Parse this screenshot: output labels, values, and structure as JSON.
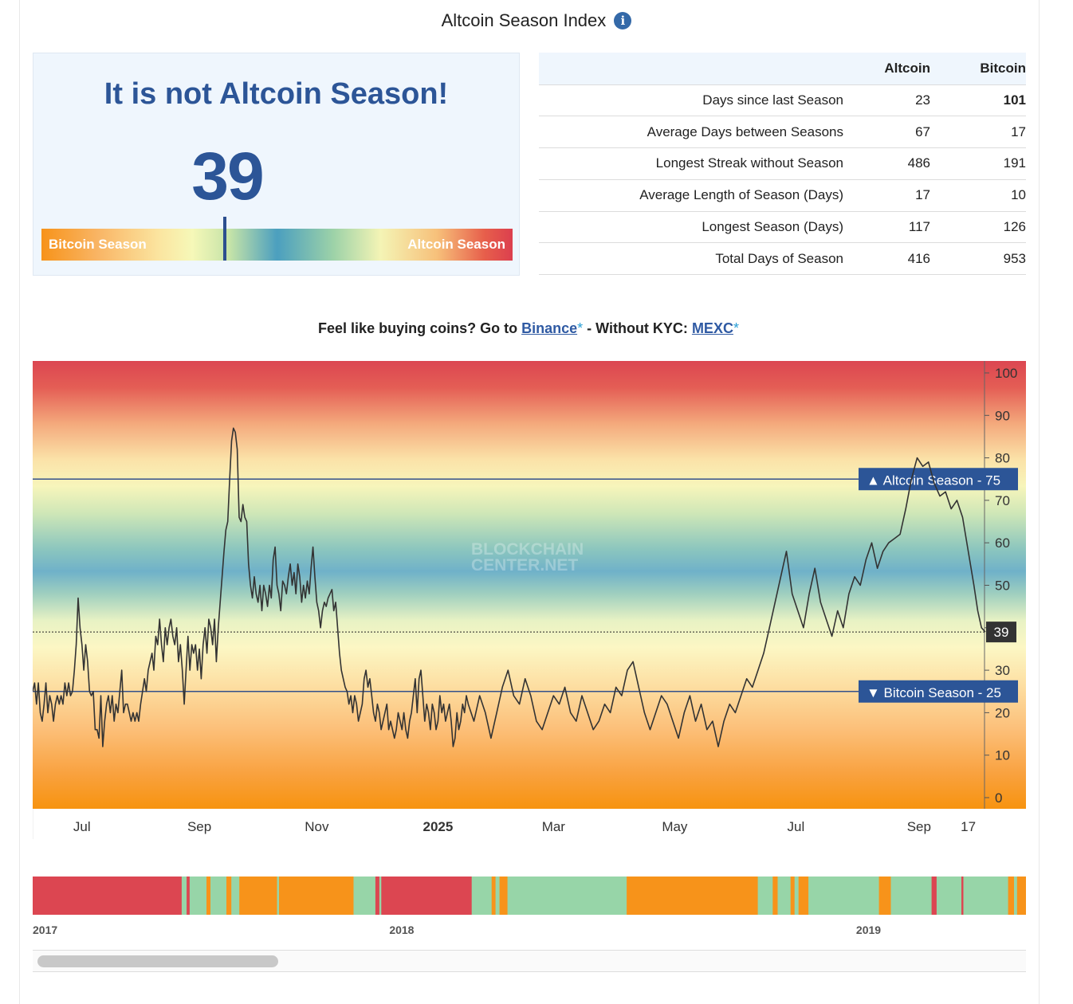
{
  "header": {
    "title": "Altcoin Season Index",
    "info_glyph": "i"
  },
  "status": {
    "headline": "It is not Altcoin Season!",
    "value": "39",
    "gauge": {
      "left_label": "Bitcoin Season",
      "right_label": "Altcoin Season",
      "marker_fraction": 0.39
    }
  },
  "stats": {
    "headers": [
      "",
      "Altcoin",
      "Bitcoin"
    ],
    "rows": [
      {
        "label": "Days since last Season",
        "altcoin": "23",
        "bitcoin": "101",
        "bitcoin_highlight": true
      },
      {
        "label": "Average Days between Seasons",
        "altcoin": "67",
        "bitcoin": "17"
      },
      {
        "label": "Longest Streak without Season",
        "altcoin": "486",
        "bitcoin": "191"
      },
      {
        "label": "Average Length of Season (Days)",
        "altcoin": "17",
        "bitcoin": "10"
      },
      {
        "label": "Longest Season (Days)",
        "altcoin": "117",
        "bitcoin": "126"
      },
      {
        "label": "Total Days of Season",
        "altcoin": "416",
        "bitcoin": "953"
      }
    ]
  },
  "promo": {
    "prefix": "Feel like buying coins? Go to ",
    "link1": "Binance",
    "mid": " - Without KYC: ",
    "link2": "MEXC",
    "star": "*"
  },
  "colors": {
    "accent": "#2c5597",
    "bitcoin_zone": "#f7931a",
    "altcoin_zone": "#dc3f4e",
    "neutral": "#4b9fbf",
    "navigator_mid": "#97d5a8"
  },
  "chart_data": {
    "type": "line",
    "watermark": [
      "BLOCKCHAIN",
      "CENTER.NET"
    ],
    "ylim": [
      0,
      100
    ],
    "y_ticks": [
      0,
      10,
      20,
      30,
      40,
      50,
      60,
      70,
      80,
      90,
      100
    ],
    "x_tick_labels": [
      "Jul",
      "Sep",
      "Nov",
      "2025",
      "Mar",
      "May",
      "Jul",
      "Sep",
      "17"
    ],
    "x_tick_days": [
      7,
      69,
      131,
      195,
      256,
      320,
      384,
      449,
      475
    ],
    "x_range_days": [
      -19,
      484
    ],
    "thresholds": [
      {
        "name": "Altcoin Season",
        "value": 75,
        "glyph": "▲"
      },
      {
        "name": "Bitcoin Season",
        "value": 25,
        "glyph": "▼"
      }
    ],
    "current": {
      "value": 39
    },
    "series": [
      {
        "values": [
          [
            -19,
            25
          ],
          [
            -18,
            27
          ],
          [
            -17,
            22
          ],
          [
            -16,
            27
          ],
          [
            -15,
            20
          ],
          [
            -14,
            18
          ],
          [
            -13,
            22
          ],
          [
            -12,
            27
          ],
          [
            -11,
            20
          ],
          [
            -10,
            24
          ],
          [
            -9,
            22
          ],
          [
            -8,
            18
          ],
          [
            -7,
            22
          ],
          [
            -6,
            24
          ],
          [
            -5,
            22
          ],
          [
            -4,
            24
          ],
          [
            -3,
            22
          ],
          [
            -2,
            27
          ],
          [
            -1,
            24
          ],
          [
            0,
            27
          ],
          [
            1,
            24
          ],
          [
            2,
            25
          ],
          [
            3,
            30
          ],
          [
            4,
            36
          ],
          [
            5,
            47
          ],
          [
            6,
            40
          ],
          [
            7,
            36
          ],
          [
            8,
            30
          ],
          [
            9,
            36
          ],
          [
            10,
            32
          ],
          [
            11,
            25
          ],
          [
            12,
            24
          ],
          [
            13,
            25
          ],
          [
            14,
            16
          ],
          [
            15,
            16
          ],
          [
            16,
            14
          ],
          [
            17,
            24
          ],
          [
            18,
            12
          ],
          [
            19,
            18
          ],
          [
            20,
            22
          ],
          [
            21,
            24
          ],
          [
            22,
            20
          ],
          [
            23,
            24
          ],
          [
            24,
            18
          ],
          [
            25,
            22
          ],
          [
            26,
            20
          ],
          [
            27,
            25
          ],
          [
            28,
            30
          ],
          [
            29,
            20
          ],
          [
            30,
            22
          ],
          [
            31,
            22
          ],
          [
            32,
            20
          ],
          [
            33,
            18
          ],
          [
            34,
            20
          ],
          [
            35,
            18
          ],
          [
            36,
            20
          ],
          [
            37,
            18
          ],
          [
            38,
            22
          ],
          [
            39,
            25
          ],
          [
            40,
            28
          ],
          [
            41,
            25
          ],
          [
            42,
            30
          ],
          [
            43,
            32
          ],
          [
            44,
            34
          ],
          [
            45,
            30
          ],
          [
            46,
            38
          ],
          [
            47,
            36
          ],
          [
            48,
            42
          ],
          [
            49,
            36
          ],
          [
            50,
            32
          ],
          [
            51,
            40
          ],
          [
            52,
            36
          ],
          [
            53,
            40
          ],
          [
            54,
            42
          ],
          [
            55,
            38
          ],
          [
            56,
            36
          ],
          [
            57,
            40
          ],
          [
            58,
            32
          ],
          [
            59,
            36
          ],
          [
            60,
            30
          ],
          [
            61,
            22
          ],
          [
            62,
            30
          ],
          [
            63,
            38
          ],
          [
            64,
            30
          ],
          [
            65,
            36
          ],
          [
            66,
            34
          ],
          [
            67,
            36
          ],
          [
            68,
            30
          ],
          [
            69,
            35
          ],
          [
            70,
            28
          ],
          [
            71,
            36
          ],
          [
            72,
            40
          ],
          [
            73,
            34
          ],
          [
            74,
            42
          ],
          [
            75,
            40
          ],
          [
            76,
            36
          ],
          [
            77,
            42
          ],
          [
            78,
            32
          ],
          [
            79,
            40
          ],
          [
            80,
            46
          ],
          [
            81,
            52
          ],
          [
            82,
            58
          ],
          [
            83,
            63
          ],
          [
            84,
            65
          ],
          [
            85,
            75
          ],
          [
            86,
            84
          ],
          [
            87,
            87
          ],
          [
            88,
            86
          ],
          [
            89,
            82
          ],
          [
            90,
            66
          ],
          [
            91,
            65
          ],
          [
            92,
            69
          ],
          [
            93,
            66
          ],
          [
            94,
            65
          ],
          [
            95,
            55
          ],
          [
            96,
            50
          ],
          [
            97,
            47
          ],
          [
            98,
            52
          ],
          [
            99,
            48
          ],
          [
            100,
            46
          ],
          [
            101,
            50
          ],
          [
            102,
            44
          ],
          [
            103,
            50
          ],
          [
            104,
            48
          ],
          [
            105,
            45
          ],
          [
            106,
            50
          ],
          [
            107,
            47
          ],
          [
            108,
            56
          ],
          [
            109,
            59
          ],
          [
            110,
            50
          ],
          [
            111,
            48
          ],
          [
            112,
            44
          ],
          [
            113,
            51
          ],
          [
            114,
            50
          ],
          [
            115,
            48
          ],
          [
            116,
            52
          ],
          [
            117,
            55
          ],
          [
            118,
            50
          ],
          [
            119,
            53
          ],
          [
            120,
            48
          ],
          [
            121,
            55
          ],
          [
            122,
            52
          ],
          [
            123,
            46
          ],
          [
            124,
            50
          ],
          [
            125,
            47
          ],
          [
            126,
            51
          ],
          [
            127,
            48
          ],
          [
            128,
            54
          ],
          [
            129,
            59
          ],
          [
            130,
            52
          ],
          [
            131,
            46
          ],
          [
            132,
            44
          ],
          [
            133,
            40
          ],
          [
            134,
            44
          ],
          [
            135,
            46
          ],
          [
            136,
            45
          ],
          [
            137,
            47
          ],
          [
            138,
            48
          ],
          [
            139,
            49
          ],
          [
            140,
            44
          ],
          [
            141,
            46
          ],
          [
            142,
            40
          ],
          [
            143,
            34
          ],
          [
            144,
            30
          ],
          [
            145,
            28
          ],
          [
            146,
            26
          ],
          [
            147,
            25
          ],
          [
            148,
            22
          ],
          [
            149,
            24
          ],
          [
            150,
            20
          ],
          [
            151,
            24
          ],
          [
            152,
            22
          ],
          [
            153,
            18
          ],
          [
            154,
            20
          ],
          [
            155,
            22
          ],
          [
            156,
            28
          ],
          [
            157,
            30
          ],
          [
            158,
            26
          ],
          [
            159,
            28
          ],
          [
            160,
            24
          ],
          [
            161,
            20
          ],
          [
            162,
            18
          ],
          [
            163,
            22
          ],
          [
            164,
            20
          ],
          [
            165,
            16
          ],
          [
            166,
            18
          ],
          [
            167,
            20
          ],
          [
            168,
            22
          ],
          [
            169,
            16
          ],
          [
            170,
            18
          ],
          [
            171,
            16
          ],
          [
            172,
            14
          ],
          [
            173,
            16
          ],
          [
            174,
            20
          ],
          [
            175,
            18
          ],
          [
            176,
            16
          ],
          [
            177,
            20
          ],
          [
            178,
            16
          ],
          [
            179,
            14
          ],
          [
            180,
            18
          ],
          [
            181,
            20
          ],
          [
            182,
            24
          ],
          [
            183,
            28
          ],
          [
            184,
            20
          ],
          [
            185,
            28
          ],
          [
            186,
            30
          ],
          [
            187,
            24
          ],
          [
            188,
            18
          ],
          [
            189,
            22
          ],
          [
            190,
            20
          ],
          [
            191,
            16
          ],
          [
            192,
            22
          ],
          [
            193,
            20
          ],
          [
            194,
            16
          ],
          [
            195,
            18
          ],
          [
            196,
            24
          ],
          [
            197,
            20
          ],
          [
            198,
            22
          ],
          [
            199,
            18
          ],
          [
            200,
            20
          ],
          [
            201,
            22
          ],
          [
            202,
            18
          ],
          [
            203,
            12
          ],
          [
            204,
            14
          ],
          [
            205,
            20
          ],
          [
            206,
            16
          ],
          [
            207,
            18
          ],
          [
            208,
            22
          ],
          [
            209,
            20
          ],
          [
            210,
            24
          ]
        ]
      }
    ]
  },
  "navigator": {
    "year_labels": [
      "2017",
      "2018",
      "2019"
    ],
    "year_fractions": [
      0.0,
      0.359,
      0.829
    ],
    "segments": [
      [
        "#dc4651",
        0.0,
        0.15
      ],
      [
        "#97d5a8",
        0.15,
        0.155
      ],
      [
        "#dc4651",
        0.155,
        0.158
      ],
      [
        "#97d5a8",
        0.158,
        0.175
      ],
      [
        "#f7931a",
        0.175,
        0.179
      ],
      [
        "#97d5a8",
        0.179,
        0.195
      ],
      [
        "#f7931a",
        0.195,
        0.2
      ],
      [
        "#97d5a8",
        0.2,
        0.208
      ],
      [
        "#f7931a",
        0.208,
        0.246
      ],
      [
        "#97d5a8",
        0.246,
        0.248
      ],
      [
        "#f7931a",
        0.248,
        0.323
      ],
      [
        "#97d5a8",
        0.323,
        0.345
      ],
      [
        "#dc4651",
        0.345,
        0.349
      ],
      [
        "#97d5a8",
        0.349,
        0.351
      ],
      [
        "#dc4651",
        0.351,
        0.442
      ],
      [
        "#97d5a8",
        0.442,
        0.462
      ],
      [
        "#f7931a",
        0.462,
        0.466
      ],
      [
        "#97d5a8",
        0.466,
        0.47
      ],
      [
        "#f7931a",
        0.47,
        0.478
      ],
      [
        "#97d5a8",
        0.478,
        0.598
      ],
      [
        "#f7931a",
        0.598,
        0.73
      ],
      [
        "#97d5a8",
        0.73,
        0.745
      ],
      [
        "#f7931a",
        0.745,
        0.75
      ],
      [
        "#97d5a8",
        0.75,
        0.763
      ],
      [
        "#f7931a",
        0.763,
        0.767
      ],
      [
        "#97d5a8",
        0.767,
        0.771
      ],
      [
        "#f7931a",
        0.771,
        0.781
      ],
      [
        "#97d5a8",
        0.781,
        0.852
      ],
      [
        "#f7931a",
        0.852,
        0.864
      ],
      [
        "#97d5a8",
        0.864,
        0.905
      ],
      [
        "#dc4651",
        0.905,
        0.91
      ],
      [
        "#97d5a8",
        0.91,
        0.935
      ],
      [
        "#dc4651",
        0.935,
        0.937
      ],
      [
        "#97d5a8",
        0.937,
        0.982
      ],
      [
        "#f7931a",
        0.982,
        0.988
      ],
      [
        "#97d5a8",
        0.988,
        0.991
      ],
      [
        "#f7931a",
        0.991,
        1.0
      ]
    ]
  }
}
